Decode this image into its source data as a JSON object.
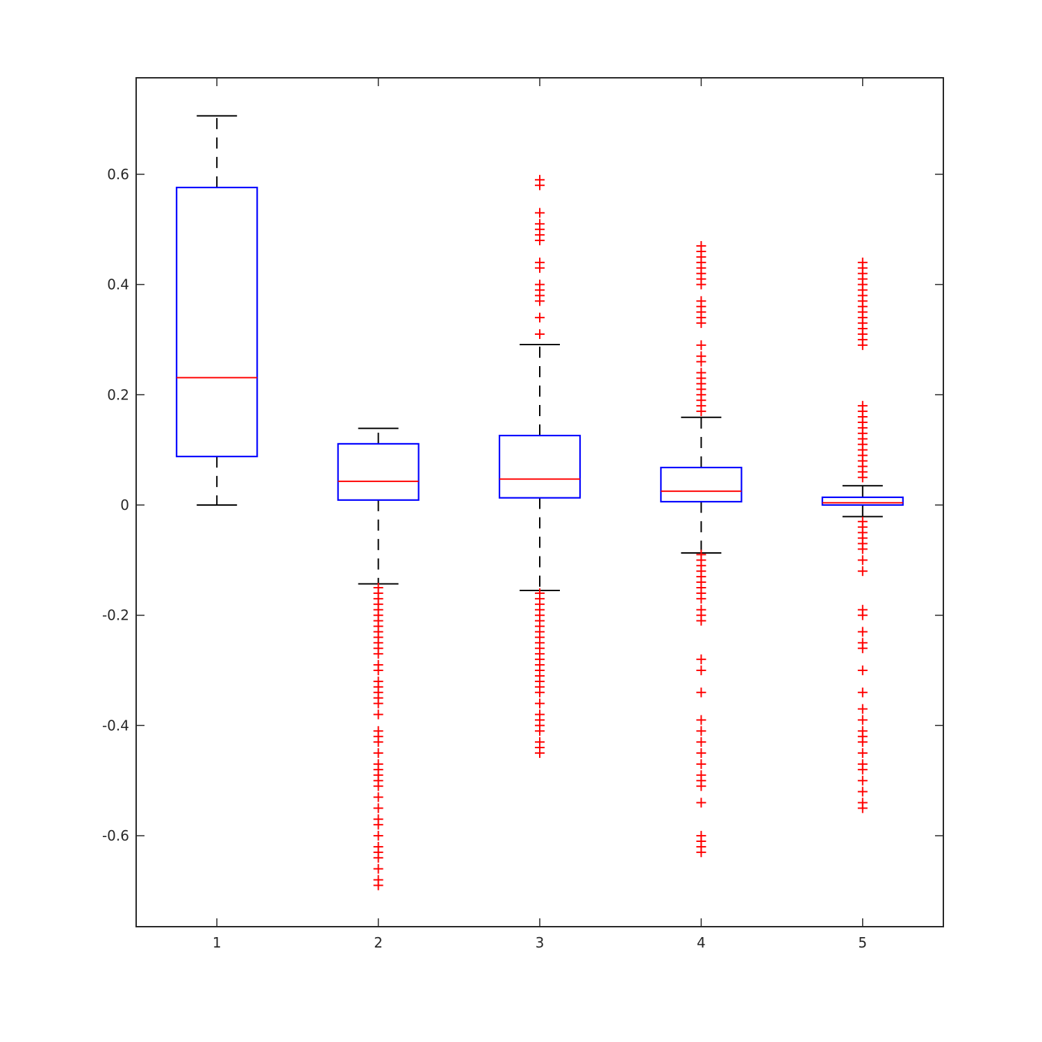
{
  "colors": {
    "box": "#0000ff",
    "median": "#ff0000",
    "outlier": "#ff0000",
    "whisker": "#000000",
    "axis": "#262626"
  },
  "chart_data": {
    "type": "box",
    "title": "",
    "xlabel": "",
    "ylabel": "",
    "ylim": [
      -0.765,
      0.775
    ],
    "xlim": [
      0.5,
      5.5
    ],
    "categories": [
      "1",
      "2",
      "3",
      "4",
      "5"
    ],
    "xticks": [
      "1",
      "2",
      "3",
      "4",
      "5"
    ],
    "yticks": [
      -0.6,
      -0.4,
      -0.2,
      0,
      0.2,
      0.4,
      0.6
    ],
    "ytick_labels": [
      "-0.6",
      "-0.4",
      "-0.2",
      "0",
      "0.2",
      "0.4",
      "0.6"
    ],
    "grid": false,
    "boxes": [
      {
        "x": "1",
        "whisker_low": 0.0,
        "q1": 0.088,
        "median": 0.231,
        "q3": 0.576,
        "whisker_high": 0.706,
        "outliers": []
      },
      {
        "x": "2",
        "whisker_low": -0.143,
        "q1": 0.009,
        "median": 0.043,
        "q3": 0.111,
        "whisker_high": 0.139,
        "outliers": [
          -0.15,
          -0.16,
          -0.17,
          -0.18,
          -0.19,
          -0.2,
          -0.21,
          -0.22,
          -0.23,
          -0.24,
          -0.25,
          -0.26,
          -0.27,
          -0.29,
          -0.3,
          -0.32,
          -0.33,
          -0.34,
          -0.35,
          -0.36,
          -0.38,
          -0.41,
          -0.42,
          -0.43,
          -0.45,
          -0.47,
          -0.48,
          -0.49,
          -0.5,
          -0.51,
          -0.53,
          -0.55,
          -0.57,
          -0.58,
          -0.6,
          -0.62,
          -0.63,
          -0.64,
          -0.66,
          -0.68,
          -0.69
        ]
      },
      {
        "x": "3",
        "whisker_low": -0.155,
        "q1": 0.013,
        "median": 0.047,
        "q3": 0.126,
        "whisker_high": 0.291,
        "outliers": [
          0.31,
          0.34,
          0.37,
          0.38,
          0.39,
          0.4,
          0.43,
          0.44,
          0.48,
          0.49,
          0.5,
          0.51,
          0.53,
          0.58,
          0.59,
          -0.16,
          -0.17,
          -0.18,
          -0.19,
          -0.2,
          -0.21,
          -0.22,
          -0.23,
          -0.24,
          -0.25,
          -0.26,
          -0.27,
          -0.28,
          -0.29,
          -0.3,
          -0.31,
          -0.32,
          -0.33,
          -0.34,
          -0.36,
          -0.38,
          -0.39,
          -0.4,
          -0.41,
          -0.43,
          -0.44,
          -0.45
        ]
      },
      {
        "x": "4",
        "whisker_low": -0.087,
        "q1": 0.006,
        "median": 0.025,
        "q3": 0.068,
        "whisker_high": 0.159,
        "outliers": [
          0.17,
          0.18,
          0.19,
          0.2,
          0.21,
          0.22,
          0.23,
          0.24,
          0.26,
          0.27,
          0.29,
          0.33,
          0.34,
          0.35,
          0.36,
          0.37,
          0.4,
          0.41,
          0.42,
          0.43,
          0.44,
          0.45,
          0.46,
          0.47,
          -0.09,
          -0.1,
          -0.11,
          -0.12,
          -0.13,
          -0.14,
          -0.15,
          -0.16,
          -0.17,
          -0.19,
          -0.2,
          -0.21,
          -0.28,
          -0.3,
          -0.34,
          -0.39,
          -0.41,
          -0.43,
          -0.45,
          -0.47,
          -0.49,
          -0.5,
          -0.51,
          -0.54,
          -0.6,
          -0.61,
          -0.62,
          -0.63
        ]
      },
      {
        "x": "5",
        "whisker_low": -0.021,
        "q1": 0.0,
        "median": 0.004,
        "q3": 0.014,
        "whisker_high": 0.035,
        "outliers": [
          0.05,
          0.06,
          0.07,
          0.08,
          0.09,
          0.1,
          0.11,
          0.12,
          0.13,
          0.14,
          0.15,
          0.16,
          0.17,
          0.18,
          0.29,
          0.3,
          0.31,
          0.32,
          0.33,
          0.34,
          0.35,
          0.36,
          0.37,
          0.38,
          0.39,
          0.4,
          0.41,
          0.42,
          0.43,
          0.44,
          -0.03,
          -0.04,
          -0.05,
          -0.06,
          -0.07,
          -0.08,
          -0.1,
          -0.12,
          -0.19,
          -0.2,
          -0.23,
          -0.25,
          -0.26,
          -0.3,
          -0.34,
          -0.37,
          -0.39,
          -0.41,
          -0.42,
          -0.43,
          -0.45,
          -0.47,
          -0.48,
          -0.5,
          -0.52,
          -0.54,
          -0.55
        ]
      }
    ]
  }
}
